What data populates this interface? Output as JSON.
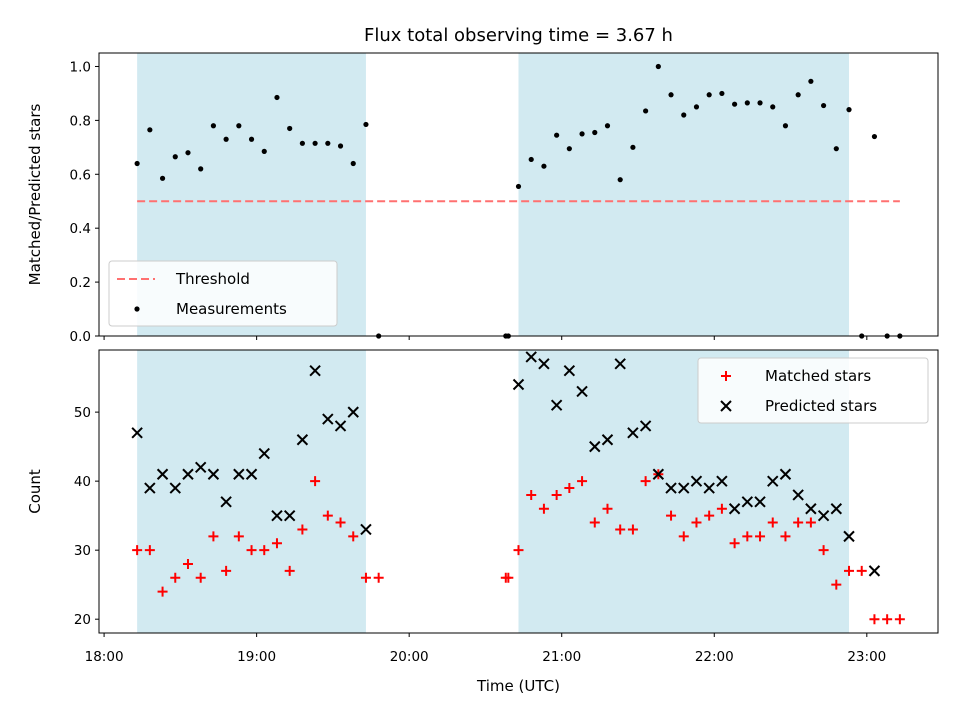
{
  "chart_data": [
    {
      "type": "scatter",
      "title": "Flux total observing time = 3.67 h",
      "xlabel": "",
      "ylabel": "Matched/Predicted stars",
      "xlim": [
        "17:58",
        "23:28"
      ],
      "ylim": [
        0.0,
        1.05
      ],
      "yticks": [
        "0.0",
        "0.2",
        "0.4",
        "0.6",
        "0.8",
        "1.0"
      ],
      "grid": false,
      "legend_placement": "lower-left",
      "shaded_intervals": [
        [
          "18:13",
          "19:43"
        ],
        [
          "20:43",
          "22:53"
        ]
      ],
      "shade_color": "#add8e6",
      "series": [
        {
          "name": "Threshold",
          "style": "dashed-line",
          "color": "#ff7070",
          "x": [
            "18:13",
            "23:13"
          ],
          "y": [
            0.5,
            0.5
          ]
        },
        {
          "name": "Measurements",
          "style": "dot",
          "color": "#000000",
          "points": [
            [
              "18:13",
              0.64
            ],
            [
              "18:18",
              0.765
            ],
            [
              "18:23",
              0.585
            ],
            [
              "18:28",
              0.665
            ],
            [
              "18:33",
              0.68
            ],
            [
              "18:38",
              0.62
            ],
            [
              "18:43",
              0.78
            ],
            [
              "18:48",
              0.73
            ],
            [
              "18:53",
              0.78
            ],
            [
              "18:58",
              0.73
            ],
            [
              "19:03",
              0.685
            ],
            [
              "19:08",
              0.885
            ],
            [
              "19:13",
              0.77
            ],
            [
              "19:18",
              0.715
            ],
            [
              "19:23",
              0.715
            ],
            [
              "19:28",
              0.715
            ],
            [
              "19:33",
              0.705
            ],
            [
              "19:38",
              0.64
            ],
            [
              "19:43",
              0.785
            ],
            [
              "19:48",
              0.0
            ],
            [
              "20:38",
              0.0
            ],
            [
              "20:39",
              0.0
            ],
            [
              "20:43",
              0.555
            ],
            [
              "20:48",
              0.655
            ],
            [
              "20:53",
              0.63
            ],
            [
              "20:58",
              0.745
            ],
            [
              "21:03",
              0.695
            ],
            [
              "21:08",
              0.75
            ],
            [
              "21:13",
              0.755
            ],
            [
              "21:18",
              0.78
            ],
            [
              "21:23",
              0.58
            ],
            [
              "21:28",
              0.7
            ],
            [
              "21:33",
              0.835
            ],
            [
              "21:38",
              1.0
            ],
            [
              "21:43",
              0.895
            ],
            [
              "21:48",
              0.82
            ],
            [
              "21:53",
              0.85
            ],
            [
              "21:58",
              0.895
            ],
            [
              "22:03",
              0.9
            ],
            [
              "22:08",
              0.86
            ],
            [
              "22:13",
              0.865
            ],
            [
              "22:18",
              0.865
            ],
            [
              "22:23",
              0.85
            ],
            [
              "22:28",
              0.78
            ],
            [
              "22:33",
              0.895
            ],
            [
              "22:38",
              0.945
            ],
            [
              "22:43",
              0.855
            ],
            [
              "22:48",
              0.695
            ],
            [
              "22:53",
              0.84
            ],
            [
              "22:58",
              0.0
            ],
            [
              "23:03",
              0.74
            ],
            [
              "23:08",
              0.0
            ],
            [
              "23:13",
              0.0
            ]
          ]
        }
      ]
    },
    {
      "type": "scatter",
      "title": "",
      "xlabel": "Time (UTC)",
      "ylabel": "Count",
      "xlim": [
        "17:58",
        "23:28"
      ],
      "ylim": [
        18,
        59
      ],
      "xticks": [
        "18:00",
        "19:00",
        "20:00",
        "21:00",
        "22:00",
        "23:00"
      ],
      "yticks": [
        "20",
        "30",
        "40",
        "50"
      ],
      "grid": false,
      "legend_placement": "top-right",
      "shaded_intervals": [
        [
          "18:13",
          "19:43"
        ],
        [
          "20:43",
          "22:53"
        ]
      ],
      "shade_color": "#add8e6",
      "series": [
        {
          "name": "Matched stars",
          "marker": "plus",
          "color": "#ff0000",
          "points": [
            [
              "18:13",
              30
            ],
            [
              "18:18",
              30
            ],
            [
              "18:23",
              24
            ],
            [
              "18:28",
              26
            ],
            [
              "18:33",
              28
            ],
            [
              "18:38",
              26
            ],
            [
              "18:43",
              32
            ],
            [
              "18:48",
              27
            ],
            [
              "18:53",
              32
            ],
            [
              "18:58",
              30
            ],
            [
              "19:03",
              30
            ],
            [
              "19:08",
              31
            ],
            [
              "19:13",
              27
            ],
            [
              "19:18",
              33
            ],
            [
              "19:23",
              40
            ],
            [
              "19:28",
              35
            ],
            [
              "19:33",
              34
            ],
            [
              "19:38",
              32
            ],
            [
              "19:43",
              26
            ],
            [
              "19:48",
              26
            ],
            [
              "20:38",
              26
            ],
            [
              "20:39",
              26
            ],
            [
              "20:43",
              30
            ],
            [
              "20:48",
              38
            ],
            [
              "20:53",
              36
            ],
            [
              "20:58",
              38
            ],
            [
              "21:03",
              39
            ],
            [
              "21:08",
              40
            ],
            [
              "21:13",
              34
            ],
            [
              "21:18",
              36
            ],
            [
              "21:23",
              33
            ],
            [
              "21:28",
              33
            ],
            [
              "21:33",
              40
            ],
            [
              "21:38",
              41
            ],
            [
              "21:43",
              35
            ],
            [
              "21:48",
              32
            ],
            [
              "21:53",
              34
            ],
            [
              "21:58",
              35
            ],
            [
              "22:03",
              36
            ],
            [
              "22:08",
              31
            ],
            [
              "22:13",
              32
            ],
            [
              "22:18",
              32
            ],
            [
              "22:23",
              34
            ],
            [
              "22:28",
              32
            ],
            [
              "22:33",
              34
            ],
            [
              "22:38",
              34
            ],
            [
              "22:43",
              30
            ],
            [
              "22:48",
              25
            ],
            [
              "22:53",
              27
            ],
            [
              "22:58",
              27
            ],
            [
              "23:03",
              20
            ],
            [
              "23:08",
              20
            ],
            [
              "23:13",
              20
            ]
          ]
        },
        {
          "name": "Predicted stars",
          "marker": "x",
          "color": "#000000",
          "points": [
            [
              "18:13",
              47
            ],
            [
              "18:18",
              39
            ],
            [
              "18:23",
              41
            ],
            [
              "18:28",
              39
            ],
            [
              "18:33",
              41
            ],
            [
              "18:38",
              42
            ],
            [
              "18:43",
              41
            ],
            [
              "18:48",
              37
            ],
            [
              "18:53",
              41
            ],
            [
              "18:58",
              41
            ],
            [
              "19:03",
              44
            ],
            [
              "19:08",
              35
            ],
            [
              "19:13",
              35
            ],
            [
              "19:18",
              46
            ],
            [
              "19:23",
              56
            ],
            [
              "19:28",
              49
            ],
            [
              "19:33",
              48
            ],
            [
              "19:38",
              50
            ],
            [
              "19:43",
              33
            ],
            [
              "20:43",
              54
            ],
            [
              "20:48",
              58
            ],
            [
              "20:53",
              57
            ],
            [
              "20:58",
              51
            ],
            [
              "21:03",
              56
            ],
            [
              "21:08",
              53
            ],
            [
              "21:13",
              45
            ],
            [
              "21:18",
              46
            ],
            [
              "21:23",
              57
            ],
            [
              "21:28",
              47
            ],
            [
              "21:33",
              48
            ],
            [
              "21:38",
              41
            ],
            [
              "21:43",
              39
            ],
            [
              "21:48",
              39
            ],
            [
              "21:53",
              40
            ],
            [
              "21:58",
              39
            ],
            [
              "22:03",
              40
            ],
            [
              "22:08",
              36
            ],
            [
              "22:13",
              37
            ],
            [
              "22:18",
              37
            ],
            [
              "22:23",
              40
            ],
            [
              "22:28",
              41
            ],
            [
              "22:33",
              38
            ],
            [
              "22:38",
              36
            ],
            [
              "22:43",
              35
            ],
            [
              "22:48",
              36
            ],
            [
              "22:53",
              32
            ],
            [
              "23:03",
              27
            ]
          ]
        }
      ]
    }
  ]
}
